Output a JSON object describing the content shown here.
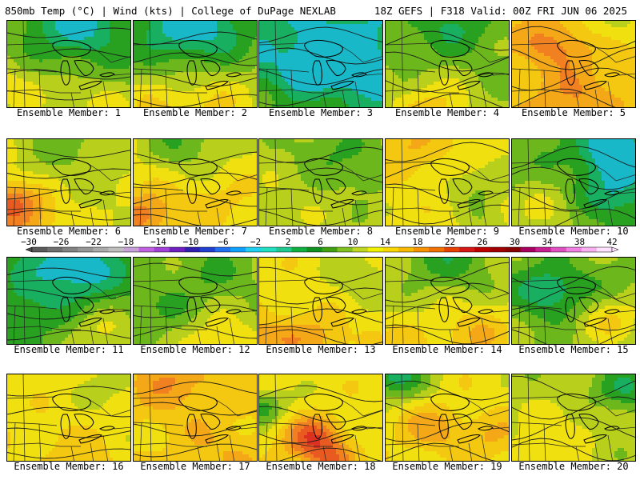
{
  "header": {
    "left": "850mb Temp (°C) | Wind (kts) | College of DuPage NEXLAB",
    "right": "18Z GEFS | F318 Valid: 00Z FRI JUN 06 2025"
  },
  "members": [
    {
      "label": "Ensemble Member: 1",
      "base": 11,
      "blobs": [
        [
          0.55,
          0.0,
          0.6,
          -6
        ],
        [
          0.0,
          0.75,
          0.5,
          4
        ],
        [
          0.7,
          1.0,
          0.5,
          4
        ]
      ]
    },
    {
      "label": "Ensemble Member: 2",
      "base": 12,
      "blobs": [
        [
          0.45,
          0.0,
          0.7,
          -8
        ],
        [
          0.6,
          0.95,
          0.6,
          4
        ],
        [
          0.1,
          1.0,
          0.5,
          3
        ]
      ]
    },
    {
      "label": "Ensemble Member: 3",
      "base": 7,
      "blobs": [
        [
          0.6,
          0.45,
          0.55,
          -6
        ],
        [
          0.5,
          1.0,
          0.4,
          3
        ],
        [
          0.05,
          0.9,
          0.35,
          3
        ]
      ]
    },
    {
      "label": "Ensemble Member: 4",
      "base": 12,
      "blobs": [
        [
          0.5,
          0.0,
          0.6,
          -4
        ],
        [
          0.35,
          1.0,
          0.5,
          5
        ]
      ]
    },
    {
      "label": "Ensemble Member: 5",
      "base": 17,
      "blobs": [
        [
          0.35,
          0.25,
          0.4,
          4
        ],
        [
          0.8,
          0.0,
          0.4,
          -4
        ],
        [
          0.5,
          0.85,
          0.45,
          3
        ]
      ]
    },
    {
      "label": "Ensemble Member: 6",
      "base": 14,
      "blobs": [
        [
          0.0,
          0.7,
          0.35,
          8
        ],
        [
          0.5,
          0.0,
          0.6,
          -3
        ],
        [
          0.2,
          0.95,
          0.4,
          4
        ]
      ]
    },
    {
      "label": "Ensemble Member: 7",
      "base": 15,
      "blobs": [
        [
          0.05,
          0.85,
          0.4,
          6
        ],
        [
          0.4,
          0.0,
          0.5,
          -5
        ],
        [
          0.6,
          0.7,
          0.4,
          2
        ]
      ]
    },
    {
      "label": "Ensemble Member: 8",
      "base": 13,
      "blobs": [
        [
          0.6,
          0.1,
          0.5,
          -3
        ],
        [
          0.85,
          0.4,
          0.35,
          -2
        ],
        [
          0.1,
          0.8,
          0.4,
          1
        ]
      ]
    },
    {
      "label": "Ensemble Member: 9",
      "base": 15,
      "blobs": [
        [
          0.2,
          0.1,
          0.5,
          3
        ],
        [
          0.75,
          0.5,
          0.45,
          -3
        ],
        [
          0.8,
          0.95,
          0.3,
          -2
        ]
      ]
    },
    {
      "label": "Ensemble Member: 10",
      "base": 11,
      "blobs": [
        [
          0.8,
          0.1,
          0.45,
          -8
        ],
        [
          0.85,
          0.6,
          0.45,
          -5
        ],
        [
          0.2,
          0.8,
          0.5,
          3
        ]
      ]
    },
    {
      "label": "Ensemble Member: 11",
      "base": 10,
      "blobs": [
        [
          0.5,
          0.1,
          0.55,
          -6
        ],
        [
          0.1,
          0.6,
          0.4,
          -2
        ],
        [
          0.75,
          0.85,
          0.5,
          4
        ]
      ]
    },
    {
      "label": "Ensemble Member: 12",
      "base": 12,
      "blobs": [
        [
          0.6,
          0.15,
          0.45,
          -2
        ],
        [
          0.2,
          0.55,
          0.45,
          -2
        ],
        [
          0.7,
          0.95,
          0.5,
          4
        ]
      ]
    },
    {
      "label": "Ensemble Member: 13",
      "base": 15,
      "blobs": [
        [
          0.8,
          0.2,
          0.4,
          -3
        ],
        [
          0.0,
          0.9,
          0.4,
          4
        ],
        [
          0.45,
          0.9,
          0.4,
          4
        ]
      ]
    },
    {
      "label": "Ensemble Member: 14",
      "base": 14,
      "blobs": [
        [
          0.5,
          0.0,
          0.6,
          -5
        ],
        [
          0.7,
          0.85,
          0.45,
          4
        ],
        [
          0.1,
          1.0,
          0.4,
          3
        ]
      ]
    },
    {
      "label": "Ensemble Member: 15",
      "base": 12,
      "blobs": [
        [
          0.3,
          0.35,
          0.45,
          -6
        ],
        [
          0.8,
          0.7,
          0.4,
          4
        ],
        [
          0.9,
          0.2,
          0.3,
          -1
        ]
      ]
    },
    {
      "label": "Ensemble Member: 16",
      "base": 15,
      "blobs": [
        [
          0.85,
          0.1,
          0.4,
          -2
        ],
        [
          0.3,
          0.75,
          0.45,
          1
        ],
        [
          0.6,
          0.95,
          0.4,
          2
        ]
      ]
    },
    {
      "label": "Ensemble Member: 17",
      "base": 16,
      "blobs": [
        [
          0.3,
          0.05,
          0.5,
          4
        ],
        [
          0.5,
          0.6,
          0.45,
          1
        ],
        [
          0.8,
          0.9,
          0.4,
          2
        ]
      ]
    },
    {
      "label": "Ensemble Member: 18",
      "base": 15,
      "blobs": [
        [
          0.0,
          0.35,
          0.3,
          -6
        ],
        [
          0.4,
          0.7,
          0.35,
          8
        ],
        [
          0.55,
          0.95,
          0.3,
          6
        ]
      ]
    },
    {
      "label": "Ensemble Member: 19",
      "base": 15,
      "blobs": [
        [
          0.05,
          0.0,
          0.4,
          -8
        ],
        [
          0.35,
          0.6,
          0.4,
          4
        ],
        [
          0.85,
          0.7,
          0.4,
          3
        ]
      ]
    },
    {
      "label": "Ensemble Member: 20",
      "base": 13,
      "blobs": [
        [
          0.9,
          0.15,
          0.4,
          -5
        ],
        [
          0.4,
          0.55,
          0.45,
          2
        ],
        [
          0.2,
          0.95,
          0.4,
          3
        ]
      ]
    }
  ],
  "colorbar": {
    "ticks": [
      "−30",
      "−26",
      "−22",
      "−18",
      "−14",
      "−10",
      "−6",
      "−2",
      "2",
      "6",
      "10",
      "14",
      "18",
      "22",
      "26",
      "30",
      "34",
      "38",
      "42"
    ],
    "colors": [
      "#5a5a5a",
      "#6e6e6e",
      "#828282",
      "#969696",
      "#aaaaaa",
      "#bebebe",
      "#c8a0d8",
      "#c060e0",
      "#a040d8",
      "#7020c0",
      "#3020b0",
      "#2040d0",
      "#2070f0",
      "#10a0ff",
      "#20d0f0",
      "#20e0c0",
      "#20c890",
      "#10b040",
      "#109020",
      "#40a010",
      "#80c020",
      "#c0d820",
      "#f0f000",
      "#f8d800",
      "#f8b800",
      "#f89000",
      "#f07000",
      "#e84000",
      "#d81818",
      "#c00000",
      "#a00000",
      "#880000",
      "#a80060",
      "#c82090",
      "#e050c0",
      "#f080e0",
      "#f8b0f0",
      "#ffe0ff"
    ]
  }
}
